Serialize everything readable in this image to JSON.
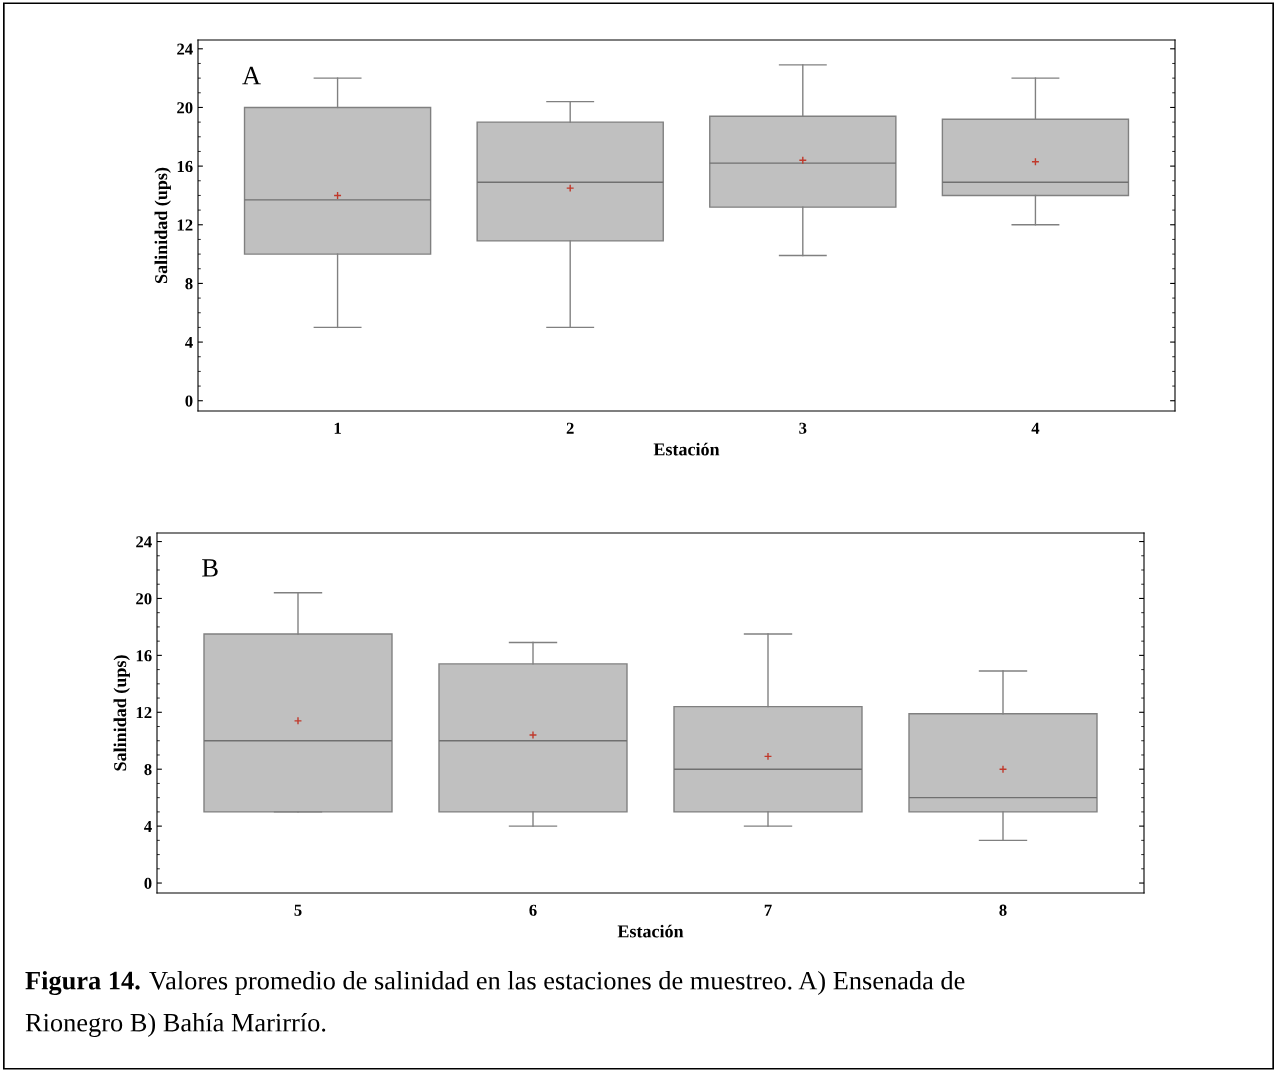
{
  "chart_data": [
    {
      "type": "box",
      "xlabel": "Estación",
      "ylabel": "Salinidad (ups)",
      "categories": [
        "1",
        "2",
        "3",
        "4"
      ],
      "color": "#c0c0c0",
      "ylim": [
        -0.7,
        24.6
      ],
      "yticks": [
        0,
        4,
        8,
        12,
        16,
        20,
        24
      ],
      "grid": false,
      "annotations": [
        "A"
      ],
      "boxes": [
        {
          "low": 5,
          "q1": 10,
          "median": 13.7,
          "q3": 20,
          "high": 22,
          "mean": 14
        },
        {
          "low": 5,
          "q1": 10.9,
          "median": 14.9,
          "q3": 19,
          "high": 20.4,
          "mean": 14.5
        },
        {
          "low": 9.9,
          "q1": 13.2,
          "median": 16.2,
          "q3": 19.4,
          "high": 22.9,
          "mean": 16.4
        },
        {
          "low": 12,
          "q1": 14,
          "median": 14.9,
          "q3": 19.2,
          "high": 22,
          "mean": 16.3
        }
      ]
    },
    {
      "type": "box",
      "xlabel": "Estación",
      "ylabel": "Salinidad (ups)",
      "categories": [
        "5",
        "6",
        "7",
        "8"
      ],
      "color": "#c0c0c0",
      "ylim": [
        -0.7,
        24.6
      ],
      "yticks": [
        0,
        4,
        8,
        12,
        16,
        20,
        24
      ],
      "grid": false,
      "annotations": [
        "B",
        "Figura 14.",
        "Valores promedio de salinidad en las estaciones de muestreo. A) Ensenada de\nRionegro B) Bahía Marirrío."
      ],
      "boxes": [
        {
          "low": 5,
          "q1": 5,
          "median": 10,
          "q3": 17.5,
          "high": 20.4,
          "mean": 11.4
        },
        {
          "low": 4,
          "q1": 5,
          "median": 10,
          "q3": 15.4,
          "high": 16.9,
          "mean": 10.4
        },
        {
          "low": 4,
          "q1": 5,
          "median": 8,
          "q3": 12.4,
          "high": 17.5,
          "mean": 8.9
        },
        {
          "low": 3,
          "q1": 5,
          "median": 6,
          "q3": 11.9,
          "high": 14.9,
          "mean": 8
        }
      ]
    }
  ]
}
